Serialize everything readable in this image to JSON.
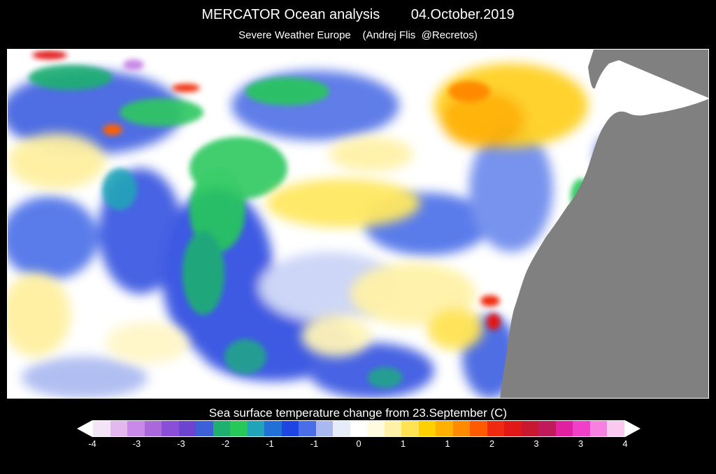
{
  "header": {
    "title": "MERCATOR Ocean analysis        04.October.2019",
    "subtitle": "Severe Weather Europe    (Andrej Flis  @Recretos)"
  },
  "colorbar": {
    "title": "Sea surface temperature change from 23.September (C)",
    "tick_labels": [
      "-4",
      "-3",
      "-3",
      "-2",
      "-1",
      "-1",
      "0",
      "1",
      "1",
      "2",
      "3",
      "3",
      "4"
    ],
    "colors": [
      "#f4e4f8",
      "#e2b8ee",
      "#c88ae6",
      "#a968dc",
      "#8a4fd6",
      "#6c44d0",
      "#3d5fd8",
      "#1fb070",
      "#27c85a",
      "#22a4b8",
      "#2070d8",
      "#1f44e4",
      "#4a6ee8",
      "#a9b8f0",
      "#e6ecfa",
      "#ffffff",
      "#fffbe0",
      "#fff2a8",
      "#ffe352",
      "#ffd000",
      "#ffb000",
      "#ff8a00",
      "#ff5a00",
      "#f02a10",
      "#e01818",
      "#c81830",
      "#c01a5a",
      "#e020a0",
      "#f040c8",
      "#f880e0",
      "#fbc8f0"
    ]
  },
  "map": {
    "land_color": "#808080",
    "ocean_base_color": "#ffffff",
    "legend_range": [
      -4,
      4
    ]
  }
}
